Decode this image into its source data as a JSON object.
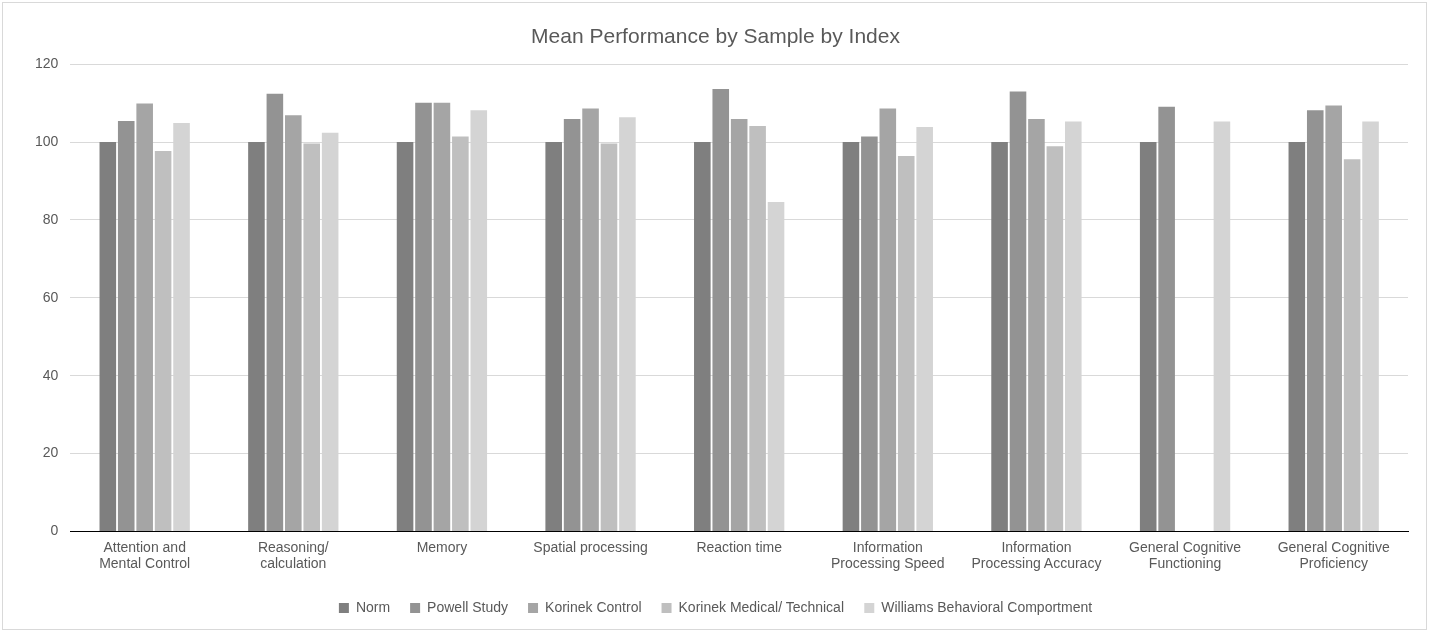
{
  "chart_data": {
    "type": "bar",
    "title": "Mean Performance by Sample by Index",
    "categories": [
      "Attention and Mental Control",
      "Reasoning/ calculation",
      "Memory",
      "Spatial processing",
      "Reaction time",
      "Information Processing Speed",
      "Information Processing Accuracy",
      "General Cognitive Functioning",
      "General Cognitive Proficiency"
    ],
    "series": [
      {
        "name": "Norm",
        "color": "#7f7f7f",
        "values": [
          100,
          100,
          100,
          100,
          100,
          100,
          100,
          100,
          100
        ]
      },
      {
        "name": "Powell Study",
        "color": "#939393",
        "values": [
          105.4,
          112.4,
          110.1,
          105.9,
          113.6,
          101.4,
          113,
          109.1,
          108.2
        ]
      },
      {
        "name": "Korinek Control",
        "color": "#a5a5a5",
        "values": [
          109.9,
          106.9,
          110.1,
          108.6,
          105.9,
          108.6,
          105.9,
          null,
          109.4
        ]
      },
      {
        "name": "Korinek Medical/ Technical",
        "color": "#bfbfbf",
        "values": [
          97.7,
          99.6,
          101.4,
          99.6,
          104.1,
          96.4,
          98.9,
          null,
          95.6
        ]
      },
      {
        "name": "Williams Behavioral Comportment",
        "color": "#d4d4d4",
        "values": [
          104.9,
          102.4,
          108.2,
          106.4,
          84.6,
          103.9,
          105.3,
          105.3,
          105.3
        ]
      }
    ],
    "ylim": [
      0,
      120
    ],
    "yticks": [
      0,
      20,
      40,
      60,
      80,
      100,
      120
    ],
    "grid": "y",
    "legend": "bottom"
  }
}
